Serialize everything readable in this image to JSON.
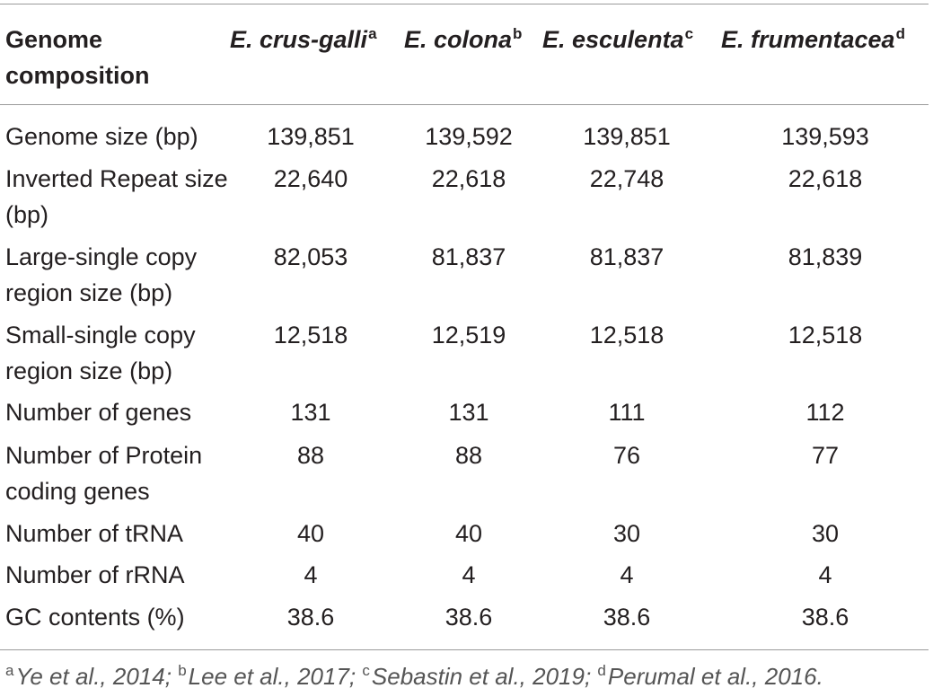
{
  "table": {
    "header": {
      "label_line1": "Genome",
      "label_line2": "composition",
      "columns": [
        {
          "name": "E. crus-galli",
          "sup": "a"
        },
        {
          "name": "E. colona",
          "sup": "b"
        },
        {
          "name": "E. esculenta",
          "sup": "c"
        },
        {
          "name": "E. frumentacea",
          "sup": "d"
        }
      ]
    },
    "rows": [
      {
        "label": "Genome size (bp)",
        "values": [
          "139,851",
          "139,592",
          "139,851",
          "139,593"
        ]
      },
      {
        "label": "Inverted Repeat size (bp)",
        "values": [
          "22,640",
          "22,618",
          "22,748",
          "22,618"
        ]
      },
      {
        "label": "Large-single copy region size (bp)",
        "values": [
          "82,053",
          "81,837",
          "81,837",
          "81,839"
        ]
      },
      {
        "label": "Small-single copy region size (bp)",
        "values": [
          "12,518",
          "12,519",
          "12,518",
          "12,518"
        ]
      },
      {
        "label": "Number of genes",
        "values": [
          "131",
          "131",
          "111",
          "112"
        ]
      },
      {
        "label": "Number of Protein coding genes",
        "values": [
          "88",
          "88",
          "76",
          "77"
        ]
      },
      {
        "label": "Number of tRNA",
        "values": [
          "40",
          "40",
          "30",
          "30"
        ]
      },
      {
        "label": "Number of rRNA",
        "values": [
          "4",
          "4",
          "4",
          "4"
        ]
      },
      {
        "label": "GC contents (%)",
        "values": [
          "38.6",
          "38.6",
          "38.6",
          "38.6"
        ]
      }
    ]
  },
  "footnotes": [
    {
      "sup": "a",
      "text": "Ye et al., 2014",
      "sep": ";"
    },
    {
      "sup": "b",
      "text": "Lee et al., 2017",
      "sep": ";"
    },
    {
      "sup": "c",
      "text": "Sebastin et al., 2019",
      "sep": ";"
    },
    {
      "sup": "d",
      "text": "Perumal et al., 2016",
      "sep": "."
    }
  ]
}
